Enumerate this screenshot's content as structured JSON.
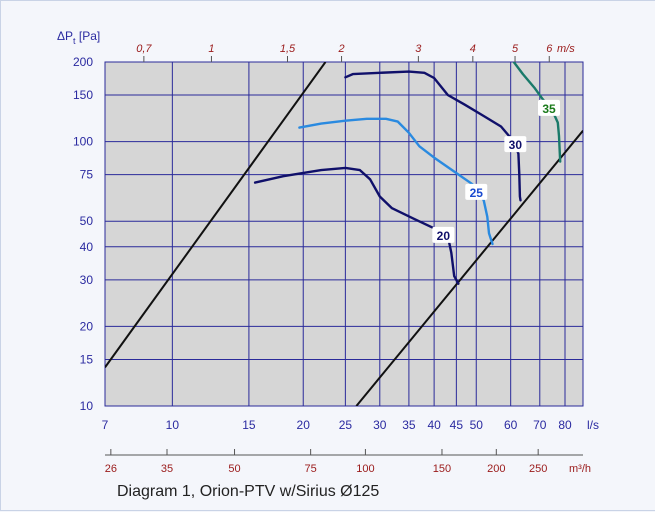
{
  "chart_data": {
    "type": "line",
    "title": "Diagram 1, Orion-PTV w/Sirius  Ø125",
    "ylabel": "ΔPt [Pa]",
    "ylabel_main": "ΔP",
    "ylabel_sub": "t",
    "ylabel_unit": " [Pa]",
    "x_unit": "l/s",
    "x_top_unit": "m/s",
    "x_bottom2_unit": "m³/h",
    "xscale": "log",
    "yscale": "log",
    "xlim": [
      7,
      88
    ],
    "ylim": [
      10,
      200
    ],
    "grid": true,
    "x_ticks": [
      {
        "value": 7,
        "label": "7"
      },
      {
        "value": 10,
        "label": "10"
      },
      {
        "value": 15,
        "label": "15"
      },
      {
        "value": 20,
        "label": "20"
      },
      {
        "value": 25,
        "label": "25"
      },
      {
        "value": 30,
        "label": "30"
      },
      {
        "value": 35,
        "label": "35"
      },
      {
        "value": 40,
        "label": "40"
      },
      {
        "value": 45,
        "label": "45"
      },
      {
        "value": 50,
        "label": "50"
      },
      {
        "value": 60,
        "label": "60"
      },
      {
        "value": 70,
        "label": "70"
      },
      {
        "value": 80,
        "label": "80"
      }
    ],
    "y_ticks": [
      {
        "value": 10,
        "label": "10"
      },
      {
        "value": 15,
        "label": "15"
      },
      {
        "value": 20,
        "label": "20"
      },
      {
        "value": 30,
        "label": "30"
      },
      {
        "value": 40,
        "label": "40"
      },
      {
        "value": 50,
        "label": "50"
      },
      {
        "value": 75,
        "label": "75"
      },
      {
        "value": 100,
        "label": "100"
      },
      {
        "value": 150,
        "label": "150"
      },
      {
        "value": 200,
        "label": "200"
      }
    ],
    "top_ticks": [
      {
        "value": 8.6,
        "label": "0,7"
      },
      {
        "value": 12.3,
        "label": "1"
      },
      {
        "value": 18.4,
        "label": "1,5"
      },
      {
        "value": 24.5,
        "label": "2"
      },
      {
        "value": 36.8,
        "label": "3"
      },
      {
        "value": 49.1,
        "label": "4"
      },
      {
        "value": 61.4,
        "label": "5"
      },
      {
        "value": 73.6,
        "label": "6"
      }
    ],
    "bottom2_ticks": [
      {
        "value": 7.22,
        "label": "26"
      },
      {
        "value": 9.72,
        "label": "35"
      },
      {
        "value": 13.9,
        "label": "50"
      },
      {
        "value": 20.8,
        "label": "75"
      },
      {
        "value": 27.8,
        "label": "100"
      },
      {
        "value": 41.7,
        "label": "150"
      },
      {
        "value": 55.6,
        "label": "200"
      },
      {
        "value": 69.4,
        "label": "250"
      }
    ],
    "boundary_lines": [
      {
        "points": [
          [
            7,
            14
          ],
          [
            22.5,
            200
          ]
        ]
      },
      {
        "points": [
          [
            26.5,
            10
          ],
          [
            88,
            110
          ]
        ]
      }
    ],
    "series": [
      {
        "label": "20",
        "color": "#10106a",
        "label_at": [
          42,
          44
        ],
        "points": [
          [
            15.5,
            70
          ],
          [
            18,
            74
          ],
          [
            22,
            78
          ],
          [
            25,
            79.5
          ],
          [
            27,
            78
          ],
          [
            28.5,
            72
          ],
          [
            30,
            62
          ],
          [
            32,
            56
          ],
          [
            36,
            51
          ],
          [
            40,
            47
          ],
          [
            43,
            44
          ],
          [
            43.8,
            38
          ],
          [
            44.5,
            31
          ],
          [
            45.5,
            29
          ]
        ]
      },
      {
        "label": "25",
        "color": "#2a8ae0",
        "label_at": [
          50,
          64
        ],
        "points": [
          [
            19.6,
            113
          ],
          [
            22,
            117
          ],
          [
            25,
            120
          ],
          [
            28,
            122
          ],
          [
            31,
            122
          ],
          [
            33,
            119
          ],
          [
            35,
            108
          ],
          [
            37,
            96
          ],
          [
            40,
            87
          ],
          [
            44,
            78
          ],
          [
            49,
            69
          ],
          [
            52,
            60
          ],
          [
            53,
            52
          ],
          [
            53.5,
            45
          ],
          [
            54.5,
            41
          ]
        ]
      },
      {
        "label": "30",
        "color": "#10106a",
        "label_at": [
          61.5,
          97
        ],
        "points": [
          [
            25,
            175
          ],
          [
            26,
            180
          ],
          [
            30,
            182
          ],
          [
            35,
            184
          ],
          [
            38,
            182
          ],
          [
            40,
            174
          ],
          [
            43,
            150
          ],
          [
            47,
            138
          ],
          [
            52,
            125
          ],
          [
            57,
            114
          ],
          [
            61,
            100
          ],
          [
            62.5,
            90
          ],
          [
            62.8,
            75
          ],
          [
            63,
            62
          ],
          [
            63.2,
            60
          ]
        ]
      },
      {
        "label": "35",
        "color": "#1a7a6a",
        "label_at": [
          73.5,
          133
        ],
        "points": [
          [
            61,
            200
          ],
          [
            64,
            180
          ],
          [
            68,
            160
          ],
          [
            71,
            145
          ],
          [
            75,
            130
          ],
          [
            77,
            118
          ],
          [
            77.5,
            105
          ],
          [
            77.8,
            92
          ],
          [
            78,
            84
          ]
        ]
      }
    ],
    "series_label_colors": [
      "#10106a",
      "#1a4ad0",
      "#10106a",
      "#1a7a1a"
    ]
  }
}
